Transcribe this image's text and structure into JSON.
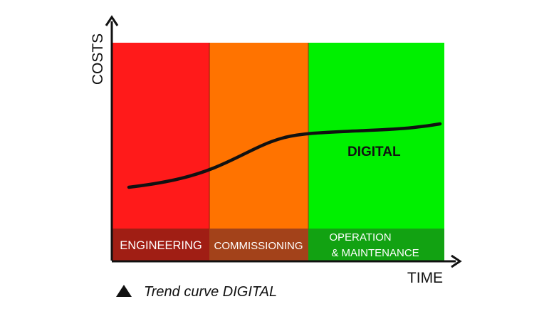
{
  "axes": {
    "y_label": "COSTS",
    "x_label": "TIME"
  },
  "phases": [
    {
      "label": "ENGINEERING",
      "color": "#ff1a1a",
      "band_color": "#a01e14"
    },
    {
      "label": "COMMISSIONING",
      "color": "#ff7300",
      "band_color": "#a3421a"
    },
    {
      "label_line1": "OPERATION",
      "label_line2": "& MAINTENANCE",
      "color": "#00f000",
      "band_color": "#12a212"
    }
  ],
  "curve": {
    "label": "DIGITAL",
    "color": "#111111"
  },
  "legend": {
    "marker": "triangle-icon",
    "text": "Trend curve DIGITAL"
  }
}
